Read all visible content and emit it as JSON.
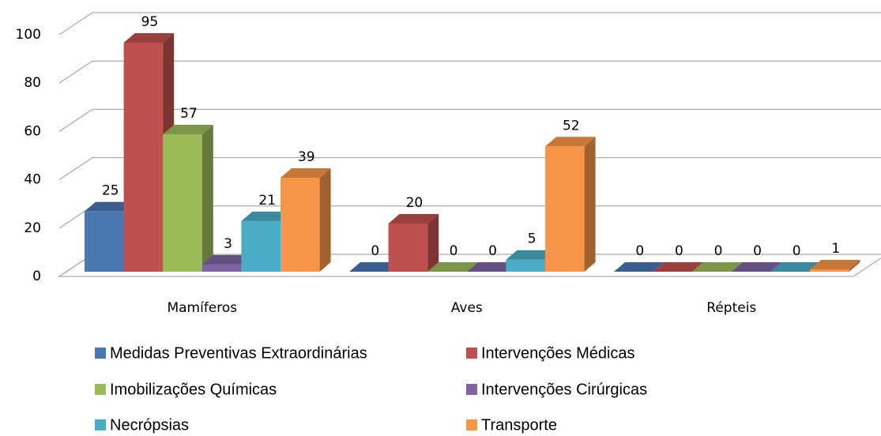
{
  "chart_data": {
    "type": "bar3d",
    "categories": [
      "Mamíferos",
      "Aves",
      "Répteis"
    ],
    "series": [
      {
        "name": "Medidas Preventivas Extraordinárias",
        "color": "#4a76b2",
        "values": [
          25,
          0,
          0
        ]
      },
      {
        "name": "Intervenções Médicas",
        "color": "#c0504d",
        "values": [
          95,
          20,
          0
        ]
      },
      {
        "name": "Imobilizações Químicas",
        "color": "#9bbb59",
        "values": [
          57,
          0,
          0
        ]
      },
      {
        "name": "Intervenções Cirúrgicas",
        "color": "#8064a2",
        "values": [
          3,
          0,
          0
        ]
      },
      {
        "name": "Necrópsias",
        "color": "#4bacc6",
        "values": [
          21,
          5,
          0
        ]
      },
      {
        "name": "Transporte",
        "color": "#f79646",
        "values": [
          39,
          52,
          1
        ]
      }
    ],
    "ylim": [
      0,
      100
    ],
    "yticks": [
      0,
      20,
      40,
      60,
      80,
      100
    ],
    "grid": true,
    "legend": "bottom"
  }
}
